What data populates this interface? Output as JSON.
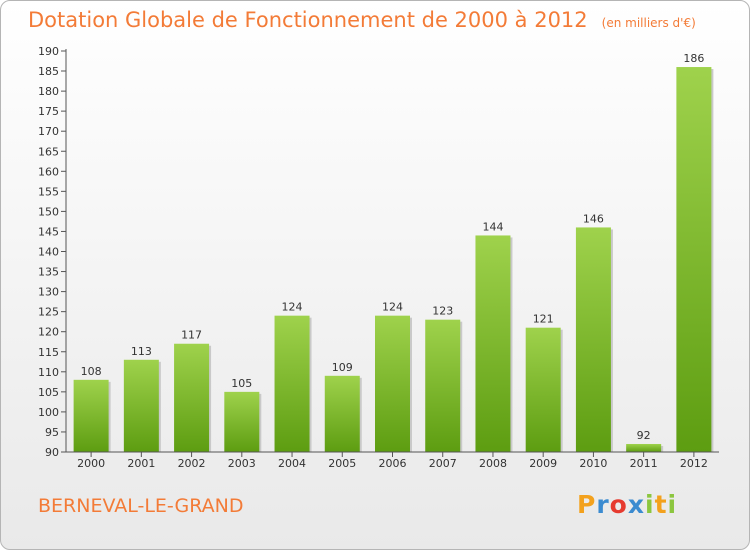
{
  "title": "Dotation Globale de Fonctionnement de 2000 à 2012",
  "unit": "(en milliers d'€)",
  "commune": "BERNEVAL-LE-GRAND",
  "logo": {
    "letters": [
      "P",
      "r",
      "o",
      "x",
      "i",
      "t",
      "i"
    ],
    "colors": [
      "#f3a11d",
      "#3b8bd0",
      "#e63a2f",
      "#3b8bd0",
      "#8cc63f",
      "#f3a11d",
      "#8cc63f"
    ]
  },
  "colors": {
    "bar_light": "#9fd24c",
    "bar_dark": "#5d9d11",
    "title": "#f37b37"
  },
  "chart_data": {
    "type": "bar",
    "categories": [
      "2000",
      "2001",
      "2002",
      "2003",
      "2004",
      "2005",
      "2006",
      "2007",
      "2008",
      "2009",
      "2010",
      "2011",
      "2012"
    ],
    "values": [
      108,
      113,
      117,
      105,
      124,
      109,
      124,
      123,
      144,
      121,
      146,
      92,
      186
    ],
    "value_labels": [
      "108",
      "113",
      "117",
      "105",
      "124",
      "109",
      "124",
      "123",
      "144",
      "121",
      "146",
      "92",
      "186"
    ],
    "ylim": [
      90,
      190
    ],
    "yticks": [
      90,
      95,
      100,
      105,
      110,
      115,
      120,
      125,
      130,
      135,
      140,
      145,
      150,
      155,
      160,
      165,
      170,
      175,
      180,
      185,
      190
    ],
    "ytick_labels": [
      "90",
      "95",
      "100",
      "105",
      "110",
      "115",
      "120",
      "125",
      "130",
      "135",
      "140",
      "145",
      "150",
      "155",
      "160",
      "165",
      "170",
      "175",
      "180",
      "185",
      "190"
    ],
    "grid": false,
    "xlabel": "",
    "ylabel": ""
  }
}
